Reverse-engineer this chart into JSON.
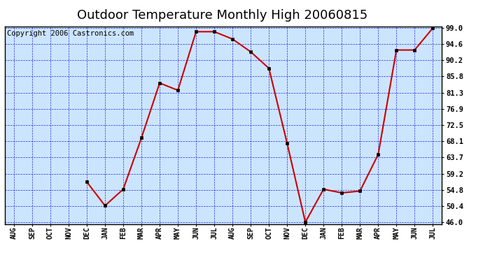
{
  "title": "Outdoor Temperature Monthly High 20060815",
  "copyright": "Copyright 2006 Castronics.com",
  "x_labels": [
    "AUG",
    "SEP",
    "OCT",
    "NOV",
    "DEC",
    "JAN",
    "FEB",
    "MAR",
    "APR",
    "MAY",
    "JUN",
    "JUL",
    "AUG",
    "SEP",
    "OCT",
    "NOV",
    "DEC",
    "JAN",
    "FEB",
    "MAR",
    "APR",
    "MAY",
    "JUN",
    "JUL"
  ],
  "y_values": [
    null,
    null,
    null,
    null,
    57.0,
    50.5,
    55.0,
    69.0,
    84.0,
    82.0,
    98.0,
    98.0,
    96.0,
    92.5,
    88.0,
    67.5,
    46.0,
    55.0,
    54.0,
    54.5,
    64.5,
    93.0,
    93.0,
    99.0
  ],
  "y_ticks": [
    46.0,
    50.4,
    54.8,
    59.2,
    63.7,
    68.1,
    72.5,
    76.9,
    81.3,
    85.8,
    90.2,
    94.6,
    99.0
  ],
  "y_tick_labels": [
    "46.0",
    "50.4",
    "54.8",
    "59.2",
    "63.7",
    "68.1",
    "72.5",
    "76.9",
    "81.3",
    "85.8",
    "90.2",
    "94.6",
    "99.0"
  ],
  "y_min": 46.0,
  "y_max": 99.0,
  "line_color": "#cc0000",
  "marker_color": "#000000",
  "bg_color": "#cce5ff",
  "border_color": "#000000",
  "grid_color": "#0000cc",
  "title_fontsize": 13,
  "copyright_fontsize": 7.5
}
